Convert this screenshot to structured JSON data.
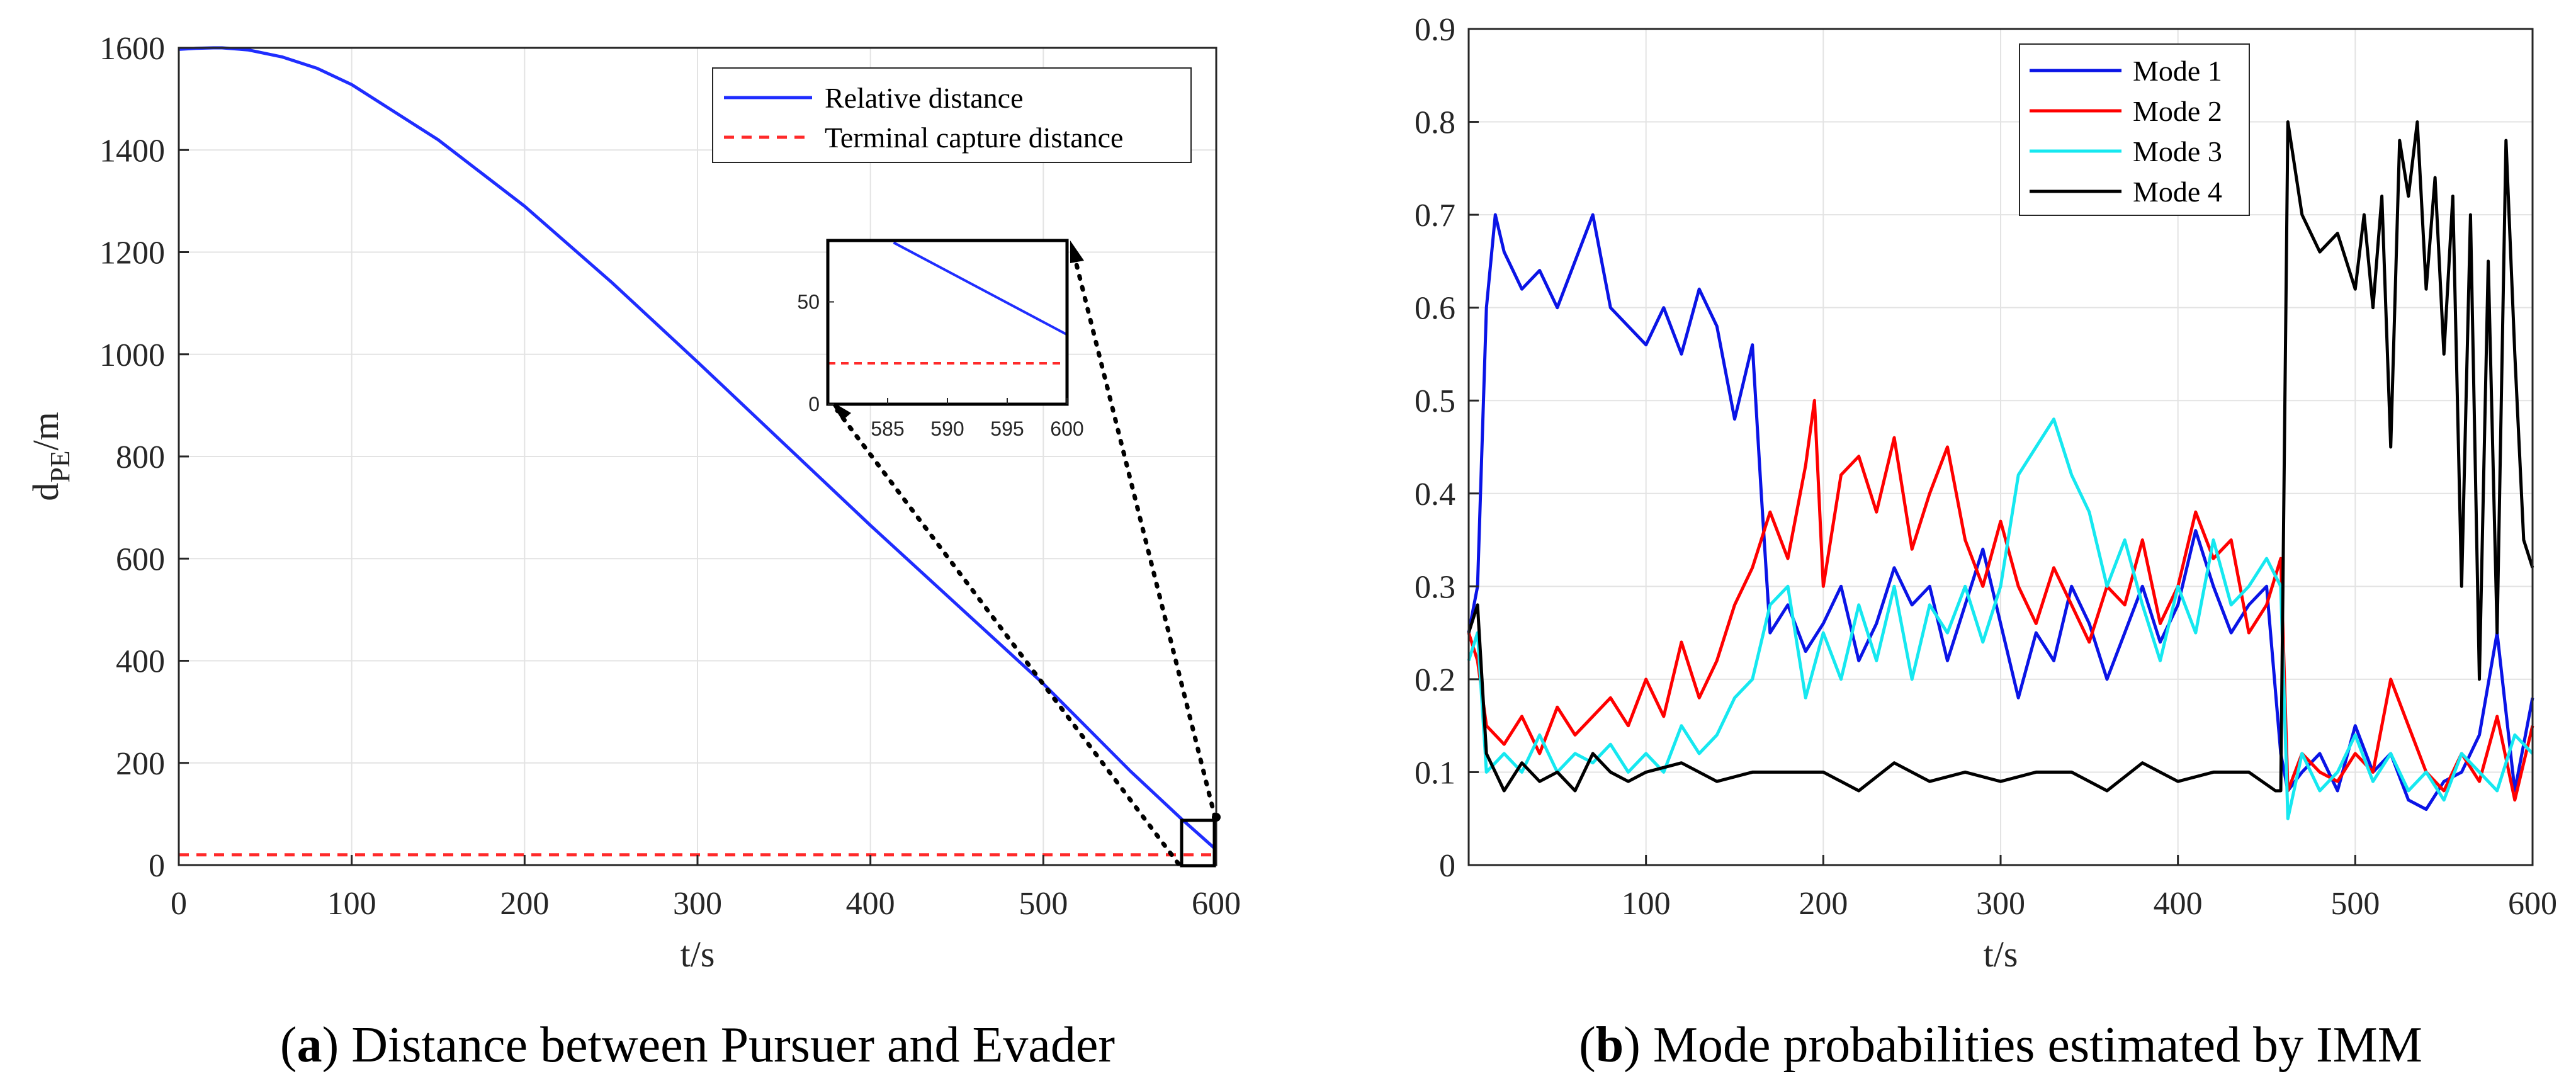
{
  "colors": {
    "relative_distance": "#1f2dff",
    "terminal_capture": "#ff2a2a",
    "mode1": "#0a14e6",
    "mode2": "#ff0000",
    "mode3": "#16e8f0",
    "mode4": "#000000",
    "grid": "#e3e3e3",
    "axis": "#262626"
  },
  "captions": {
    "a": {
      "letter": "a",
      "text": " Distance between Pursuer and Evader"
    },
    "b": {
      "letter": "b",
      "text": " Mode probabilities estimated by IMM"
    }
  },
  "chart_data": [
    {
      "id": "a",
      "type": "line",
      "xlabel": "t/s",
      "ylabel_main": "d",
      "ylabel_sub": "PE",
      "ylabel_suffix": "/m",
      "xlim": [
        0,
        600
      ],
      "ylim": [
        0,
        1600
      ],
      "xticks": [
        0,
        100,
        200,
        300,
        400,
        500,
        600
      ],
      "yticks": [
        0,
        200,
        400,
        600,
        800,
        1000,
        1200,
        1400,
        1600
      ],
      "grid": true,
      "legend_position": "top-right",
      "series": [
        {
          "name": "Relative distance",
          "style": "solid",
          "x": [
            0,
            10,
            20,
            25,
            40,
            60,
            80,
            100,
            150,
            200,
            250,
            300,
            350,
            400,
            450,
            500,
            550,
            580,
            600
          ],
          "y": [
            1597,
            1599,
            1600,
            1600,
            1596,
            1582,
            1560,
            1528,
            1420,
            1290,
            1142,
            985,
            825,
            665,
            510,
            355,
            185,
            90,
            30
          ]
        },
        {
          "name": "Terminal capture distance",
          "style": "dashed",
          "x": [
            0,
            600
          ],
          "y": [
            20,
            20
          ]
        }
      ],
      "inset": {
        "xlim": [
          580,
          600
        ],
        "ylim": [
          0,
          80
        ],
        "xticks": [
          585,
          590,
          595,
          600
        ],
        "yticks": [
          0,
          50
        ],
        "series": [
          {
            "name": "Relative distance",
            "x": [
              585.5,
              600
            ],
            "y": [
              79,
              34
            ]
          },
          {
            "name": "Terminal capture distance",
            "x": [
              580,
              600
            ],
            "y": [
              20,
              20
            ]
          }
        ]
      }
    },
    {
      "id": "b",
      "type": "line",
      "xlabel": "t/s",
      "ylabel": "",
      "xlim": [
        0,
        600
      ],
      "ylim": [
        0,
        0.9
      ],
      "xticks": [
        100,
        200,
        300,
        400,
        500,
        600
      ],
      "yticks": [
        0,
        0.1,
        0.2,
        0.3,
        0.4,
        0.5,
        0.6,
        0.7,
        0.8,
        0.9
      ],
      "grid": true,
      "legend_position": "top-center",
      "series": [
        {
          "name": "Mode 1",
          "x": [
            0,
            5,
            10,
            15,
            20,
            30,
            40,
            50,
            60,
            70,
            80,
            90,
            100,
            110,
            120,
            130,
            140,
            150,
            160,
            165,
            170,
            180,
            190,
            200,
            210,
            220,
            230,
            240,
            250,
            260,
            270,
            280,
            290,
            300,
            310,
            320,
            330,
            340,
            350,
            360,
            370,
            380,
            390,
            400,
            410,
            420,
            430,
            440,
            450,
            458,
            462,
            470,
            480,
            490,
            500,
            510,
            520,
            530,
            540,
            550,
            560,
            570,
            580,
            590,
            600
          ],
          "y": [
            0.25,
            0.3,
            0.6,
            0.7,
            0.66,
            0.62,
            0.64,
            0.6,
            0.65,
            0.7,
            0.6,
            0.58,
            0.56,
            0.6,
            0.55,
            0.62,
            0.58,
            0.48,
            0.56,
            0.4,
            0.25,
            0.28,
            0.23,
            0.26,
            0.3,
            0.22,
            0.26,
            0.32,
            0.28,
            0.3,
            0.22,
            0.28,
            0.34,
            0.26,
            0.18,
            0.25,
            0.22,
            0.3,
            0.26,
            0.2,
            0.25,
            0.3,
            0.24,
            0.28,
            0.36,
            0.3,
            0.25,
            0.28,
            0.3,
            0.12,
            0.08,
            0.1,
            0.12,
            0.08,
            0.15,
            0.1,
            0.12,
            0.07,
            0.06,
            0.09,
            0.1,
            0.14,
            0.25,
            0.08,
            0.18
          ]
        },
        {
          "name": "Mode 2",
          "x": [
            0,
            5,
            10,
            20,
            30,
            40,
            50,
            60,
            70,
            80,
            90,
            100,
            110,
            120,
            130,
            140,
            150,
            160,
            170,
            180,
            190,
            195,
            200,
            210,
            220,
            230,
            240,
            250,
            260,
            270,
            280,
            290,
            300,
            310,
            320,
            330,
            340,
            350,
            360,
            370,
            380,
            390,
            400,
            410,
            420,
            430,
            440,
            450,
            458,
            462,
            470,
            480,
            490,
            500,
            510,
            520,
            530,
            540,
            550,
            560,
            570,
            580,
            590,
            600
          ],
          "y": [
            0.25,
            0.22,
            0.15,
            0.13,
            0.16,
            0.12,
            0.17,
            0.14,
            0.16,
            0.18,
            0.15,
            0.2,
            0.16,
            0.24,
            0.18,
            0.22,
            0.28,
            0.32,
            0.38,
            0.33,
            0.43,
            0.5,
            0.3,
            0.42,
            0.44,
            0.38,
            0.46,
            0.34,
            0.4,
            0.45,
            0.35,
            0.3,
            0.37,
            0.3,
            0.26,
            0.32,
            0.28,
            0.24,
            0.3,
            0.28,
            0.35,
            0.26,
            0.3,
            0.38,
            0.33,
            0.35,
            0.25,
            0.28,
            0.33,
            0.08,
            0.12,
            0.1,
            0.09,
            0.12,
            0.1,
            0.2,
            0.15,
            0.1,
            0.08,
            0.12,
            0.09,
            0.16,
            0.07,
            0.15
          ]
        },
        {
          "name": "Mode 3",
          "x": [
            0,
            5,
            10,
            20,
            30,
            40,
            50,
            60,
            70,
            80,
            90,
            100,
            110,
            120,
            130,
            140,
            150,
            160,
            170,
            180,
            190,
            200,
            210,
            220,
            230,
            240,
            250,
            260,
            270,
            280,
            290,
            300,
            310,
            320,
            330,
            340,
            350,
            360,
            370,
            380,
            390,
            400,
            410,
            420,
            430,
            440,
            450,
            458,
            462,
            470,
            480,
            490,
            500,
            510,
            520,
            530,
            540,
            550,
            560,
            570,
            580,
            590,
            600
          ],
          "y": [
            0.22,
            0.25,
            0.1,
            0.12,
            0.1,
            0.14,
            0.1,
            0.12,
            0.11,
            0.13,
            0.1,
            0.12,
            0.1,
            0.15,
            0.12,
            0.14,
            0.18,
            0.2,
            0.28,
            0.3,
            0.18,
            0.25,
            0.2,
            0.28,
            0.22,
            0.3,
            0.2,
            0.28,
            0.25,
            0.3,
            0.24,
            0.3,
            0.42,
            0.45,
            0.48,
            0.42,
            0.38,
            0.3,
            0.35,
            0.28,
            0.22,
            0.3,
            0.25,
            0.35,
            0.28,
            0.3,
            0.33,
            0.3,
            0.05,
            0.12,
            0.08,
            0.1,
            0.14,
            0.09,
            0.12,
            0.08,
            0.1,
            0.07,
            0.12,
            0.1,
            0.08,
            0.14,
            0.12
          ]
        },
        {
          "name": "Mode 4",
          "x": [
            0,
            5,
            10,
            15,
            20,
            30,
            40,
            50,
            60,
            70,
            80,
            90,
            100,
            120,
            140,
            160,
            180,
            200,
            220,
            240,
            260,
            280,
            300,
            320,
            340,
            360,
            380,
            400,
            420,
            440,
            455,
            458,
            462,
            470,
            480,
            490,
            500,
            505,
            510,
            515,
            520,
            525,
            530,
            535,
            540,
            545,
            550,
            555,
            560,
            565,
            570,
            575,
            580,
            585,
            590,
            595,
            600
          ],
          "y": [
            0.25,
            0.28,
            0.12,
            0.1,
            0.08,
            0.11,
            0.09,
            0.1,
            0.08,
            0.12,
            0.1,
            0.09,
            0.1,
            0.11,
            0.09,
            0.1,
            0.1,
            0.1,
            0.08,
            0.11,
            0.09,
            0.1,
            0.09,
            0.1,
            0.1,
            0.08,
            0.11,
            0.09,
            0.1,
            0.1,
            0.08,
            0.08,
            0.8,
            0.7,
            0.66,
            0.68,
            0.62,
            0.7,
            0.6,
            0.72,
            0.45,
            0.78,
            0.72,
            0.8,
            0.62,
            0.74,
            0.55,
            0.72,
            0.3,
            0.7,
            0.2,
            0.65,
            0.25,
            0.78,
            0.55,
            0.35,
            0.32
          ]
        }
      ]
    }
  ]
}
